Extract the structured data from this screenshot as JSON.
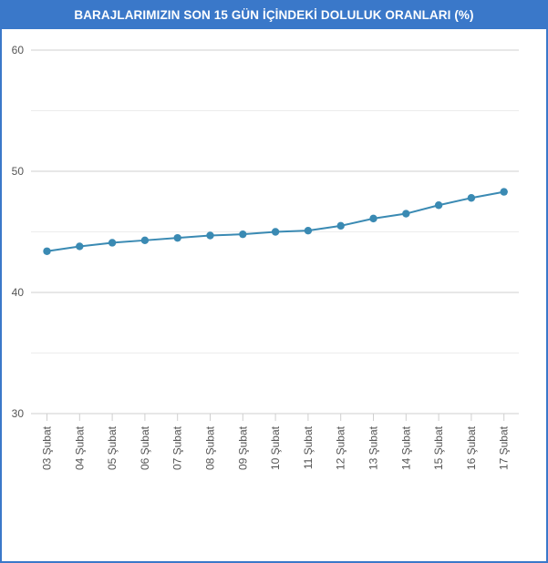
{
  "chart_data": {
    "type": "line",
    "title": "BARAJLARIMIZIN SON 15 GÜN İÇİNDEKİ DOLULUK ORANLARI (%)",
    "xlabel": "",
    "ylabel": "",
    "categories": [
      "03 Şubat",
      "04 Şubat",
      "05 Şubat",
      "06 Şubat",
      "07 Şubat",
      "08 Şubat",
      "09 Şubat",
      "10 Şubat",
      "11 Şubat",
      "12 Şubat",
      "13 Şubat",
      "14 Şubat",
      "15 Şubat",
      "16 Şubat",
      "17 Şubat"
    ],
    "series": [
      {
        "values": [
          43.4,
          43.8,
          44.1,
          44.3,
          44.5,
          44.7,
          44.8,
          45.0,
          45.1,
          45.5,
          46.1,
          46.5,
          47.2,
          47.8,
          48.3
        ]
      }
    ],
    "ylim": [
      30,
      60
    ],
    "yticks": [
      "30",
      "40",
      "50",
      "60"
    ],
    "grid": true,
    "colors": {
      "line": "#3a8ab3",
      "point": "#3a8ab3",
      "header": "#3a78c9"
    }
  }
}
